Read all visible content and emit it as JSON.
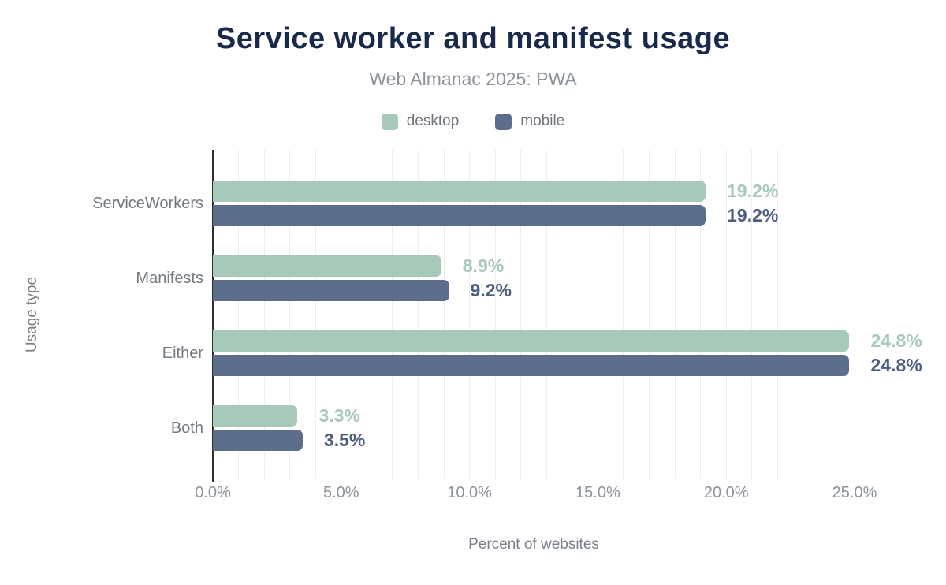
{
  "header": {
    "title": "Service worker and manifest usage",
    "subtitle": "Web Almanac 2025: PWA"
  },
  "chart_data": {
    "type": "bar",
    "orientation": "horizontal",
    "title": "Service worker and manifest usage",
    "subtitle": "Web Almanac 2025: PWA",
    "categories": [
      "ServiceWorkers",
      "Manifests",
      "Either",
      "Both"
    ],
    "series": [
      {
        "name": "desktop",
        "color": "#a6c9ba",
        "label_color": "#a6c9ba",
        "values": [
          19.2,
          8.9,
          24.8,
          3.3
        ],
        "labels": [
          "19.2%",
          "8.9%",
          "24.8%",
          "3.3%"
        ]
      },
      {
        "name": "mobile",
        "color": "#5d6e8c",
        "label_color": "#4d5e7e",
        "values": [
          19.2,
          9.2,
          24.8,
          3.5
        ],
        "labels": [
          "19.2%",
          "9.2%",
          "24.8%",
          "3.5%"
        ]
      }
    ],
    "xlabel": "Percent of websites",
    "ylabel": "Usage type",
    "xlim": [
      0,
      25
    ],
    "grid_step_pct": 1,
    "x_ticks": [
      0,
      5,
      10,
      15,
      20,
      25
    ],
    "x_tick_labels": [
      "0.0%",
      "5.0%",
      "10.0%",
      "15.0%",
      "20.0%",
      "25.0%"
    ],
    "legend_position": "top",
    "grid": "minor vertical gridlines every 1%, light gray"
  },
  "colors": {
    "title": "#18294b",
    "subtitle": "#8d939b",
    "axis_line": "#2d2d2d",
    "gridline": "#ededed",
    "desktop": "#a6c9ba",
    "mobile": "#5d6e8c",
    "mobile_value_label": "#4d5e7e"
  }
}
